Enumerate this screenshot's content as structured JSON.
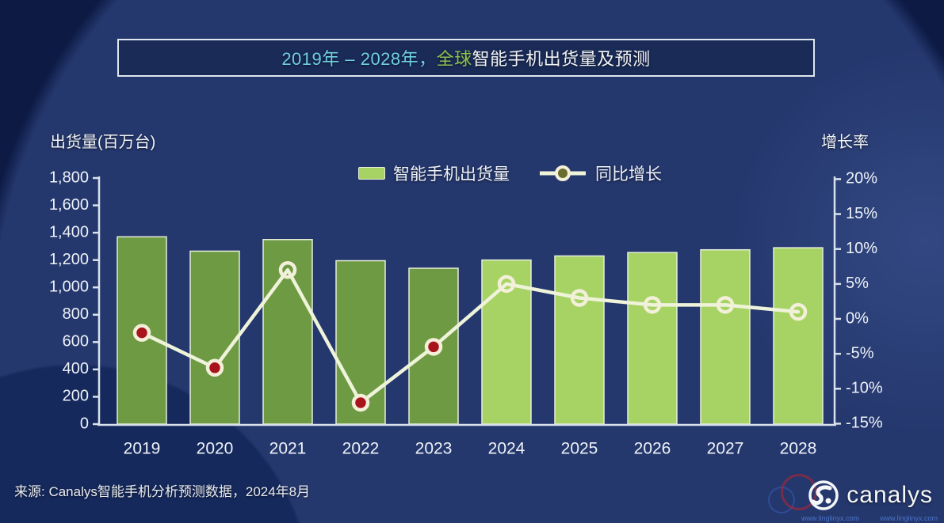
{
  "title": {
    "range": "2019年 – 2028年，",
    "highlight": "全球",
    "rest": "智能手机出货量及预测"
  },
  "legend": {
    "bars_label": "智能手机出货量",
    "line_label": "同比增长"
  },
  "source_text": "来源: Canalys智能手机分析预测数据，2024年8月",
  "logo_text": "canalys",
  "watermark": {
    "left": "www.linglinyx.com",
    "right": "www.linglinyx.com"
  },
  "colors": {
    "background": "#0c1a44",
    "bar_actual": "#6f9a44",
    "bar_forecast": "#a7d365",
    "bar_border": "#e6eedb",
    "line": "#eef3da",
    "marker_fill_negative": "#a8131c",
    "marker_ring": "#f3efd8",
    "legend_marker_center": "#6a6c2d",
    "axis": "#d9e2ec",
    "tick_text": "#eef2f8",
    "title_cyan": "#6fd0e2",
    "title_green": "#8ec04f",
    "text_white": "#f2f4f6"
  },
  "chart_data": {
    "type": "bar",
    "subtype": "combo-bar-line-dual-axis",
    "title": "2019年 – 2028年，全球智能手机出货量及预测",
    "categories": [
      "2019",
      "2020",
      "2021",
      "2022",
      "2023",
      "2024",
      "2025",
      "2026",
      "2027",
      "2028"
    ],
    "series": [
      {
        "name": "智能手机出货量",
        "type": "bar",
        "axis": "left",
        "unit": "百万台",
        "values": [
          1370,
          1265,
          1350,
          1195,
          1140,
          1200,
          1230,
          1255,
          1275,
          1290
        ],
        "segment": [
          "actual",
          "actual",
          "actual",
          "actual",
          "actual",
          "forecast",
          "forecast",
          "forecast",
          "forecast",
          "forecast"
        ]
      },
      {
        "name": "同比增长",
        "type": "line",
        "axis": "right",
        "unit": "%",
        "values": [
          -2,
          -7,
          7,
          -12,
          -4,
          5,
          3,
          2,
          2,
          1
        ],
        "markers": [
          "filled",
          "filled",
          "hollow",
          "filled",
          "filled",
          "hollow",
          "hollow",
          "hollow",
          "hollow",
          "hollow"
        ]
      }
    ],
    "left_axis": {
      "title": "出货量(百万台)",
      "min": 0,
      "max": 1800,
      "step": 200,
      "tick_labels": [
        "0",
        "200",
        "400",
        "600",
        "800",
        "1,000",
        "1,200",
        "1,400",
        "1,600",
        "1,800"
      ]
    },
    "right_axis": {
      "title": "增长率",
      "min": -15,
      "max": 20,
      "step": 5,
      "tick_labels": [
        "-15%",
        "-10%",
        "-5%",
        "0%",
        "5%",
        "10%",
        "15%",
        "20%"
      ]
    },
    "grid": false,
    "legend_position": "top-center"
  }
}
